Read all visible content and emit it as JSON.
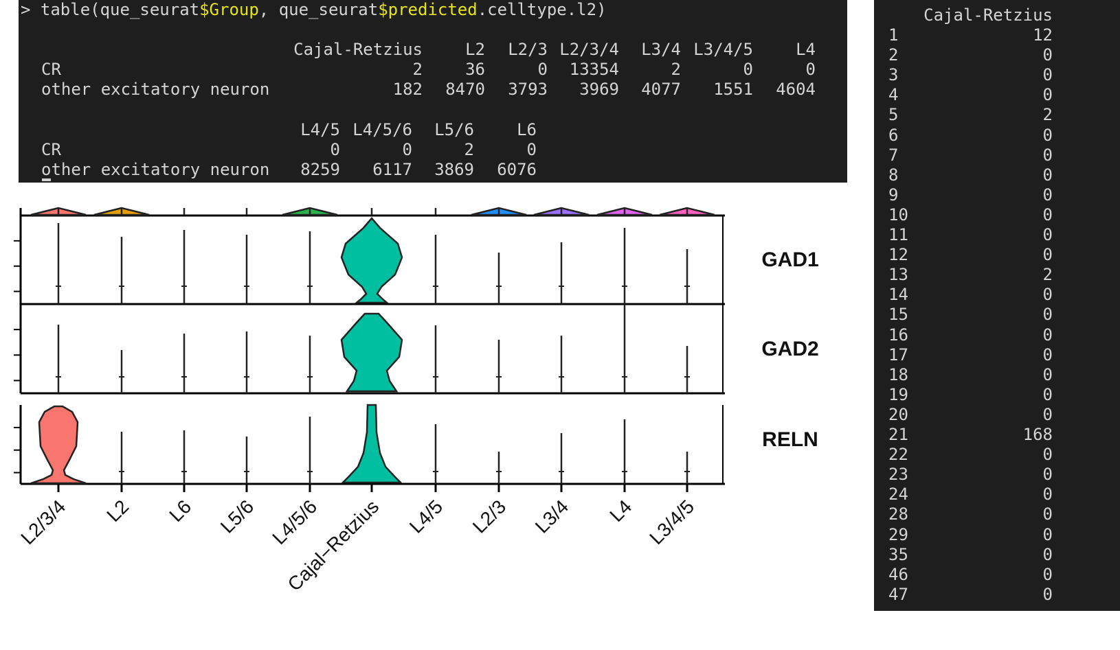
{
  "terminal_top": {
    "command": [
      "> table(que_seurat",
      "$Group",
      ", que_seurat",
      "$predicted",
      ".celltype.l2)"
    ],
    "tables": [
      {
        "columns": [
          "Cajal-Retzius",
          "L2",
          "L2/3",
          "L2/3/4",
          "L3/4",
          "L3/4/5",
          "L4"
        ],
        "rows": [
          {
            "label": "CR",
            "values": [
              2,
              36,
              0,
              13354,
              2,
              0,
              0
            ]
          },
          {
            "label": "other excitatory neuron",
            "values": [
              182,
              8470,
              3793,
              3969,
              4077,
              1551,
              4604
            ]
          }
        ]
      },
      {
        "columns": [
          "L4/5",
          "L4/5/6",
          "L5/6",
          "L6"
        ],
        "rows": [
          {
            "label": "CR",
            "values": [
              0,
              0,
              2,
              0
            ]
          },
          {
            "label": "other excitatory neuron",
            "values": [
              8259,
              6117,
              3869,
              6076
            ]
          }
        ]
      }
    ]
  },
  "violin_plot": {
    "genes": [
      "GAD1",
      "GAD2",
      "RELN"
    ],
    "categories": [
      "L2/3/4",
      "L2",
      "L6",
      "L5/6",
      "L4/5/6",
      "Cajal−Retzius",
      "L4/5",
      "L2/3",
      "L3/4",
      "L4",
      "L3/4/5"
    ]
  },
  "terminal_right": {
    "header": "Cajal-Retzius",
    "rows": [
      [
        1,
        12
      ],
      [
        2,
        0
      ],
      [
        3,
        0
      ],
      [
        4,
        0
      ],
      [
        5,
        2
      ],
      [
        6,
        0
      ],
      [
        7,
        0
      ],
      [
        8,
        0
      ],
      [
        9,
        0
      ],
      [
        10,
        0
      ],
      [
        11,
        0
      ],
      [
        12,
        0
      ],
      [
        13,
        2
      ],
      [
        14,
        0
      ],
      [
        15,
        0
      ],
      [
        16,
        0
      ],
      [
        17,
        0
      ],
      [
        18,
        0
      ],
      [
        19,
        0
      ],
      [
        20,
        0
      ],
      [
        21,
        168
      ],
      [
        22,
        0
      ],
      [
        23,
        0
      ],
      [
        24,
        0
      ],
      [
        28,
        0
      ],
      [
        29,
        0
      ],
      [
        35,
        0
      ],
      [
        46,
        0
      ],
      [
        47,
        0
      ]
    ]
  }
}
